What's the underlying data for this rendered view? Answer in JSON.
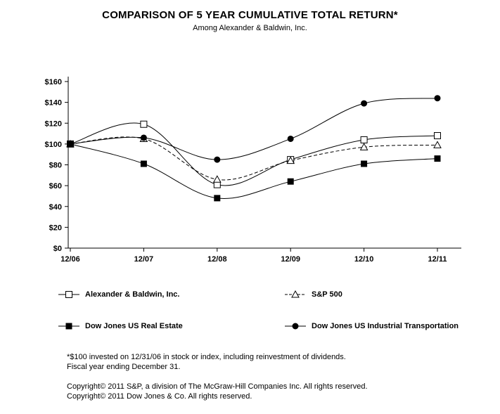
{
  "title": "COMPARISON OF 5 YEAR CUMULATIVE TOTAL RETURN*",
  "subtitle": "Among Alexander & Baldwin, Inc.",
  "chart_data": {
    "type": "line",
    "x": [
      "12/06",
      "12/07",
      "12/08",
      "12/09",
      "12/10",
      "12/11"
    ],
    "ylim": [
      0,
      160
    ],
    "ytick_step": 20,
    "ytick_labels": [
      "$0",
      "$20",
      "$40",
      "$60",
      "$80",
      "$100",
      "$120",
      "$140",
      "$160"
    ],
    "grid": false,
    "legend_position": "below",
    "line_color": "#000000",
    "series": [
      {
        "name": "Alexander & Baldwin, Inc.",
        "marker": "open-square",
        "dash": "solid",
        "values": [
          100,
          119,
          61,
          85,
          104,
          108
        ]
      },
      {
        "name": "S&P 500",
        "marker": "open-triangle",
        "dash": "dashed",
        "values": [
          100,
          105,
          66,
          84,
          97,
          99
        ]
      },
      {
        "name": "Dow Jones US Real Estate",
        "marker": "filled-square",
        "dash": "solid",
        "values": [
          100,
          81,
          48,
          64,
          81,
          86
        ]
      },
      {
        "name": "Dow Jones US Industrial Transportation",
        "marker": "filled-circle",
        "dash": "solid",
        "values": [
          100,
          106,
          85,
          105,
          139,
          144
        ]
      }
    ]
  },
  "footnotes": [
    "*$100 invested on 12/31/06 in stock or index, including reinvestment of dividends.",
    "Fiscal year ending December 31."
  ],
  "copyright": [
    "Copyright© 2011 S&P, a division of The McGraw-Hill Companies Inc. All rights reserved.",
    "Copyright© 2011 Dow Jones & Co. All rights reserved."
  ]
}
